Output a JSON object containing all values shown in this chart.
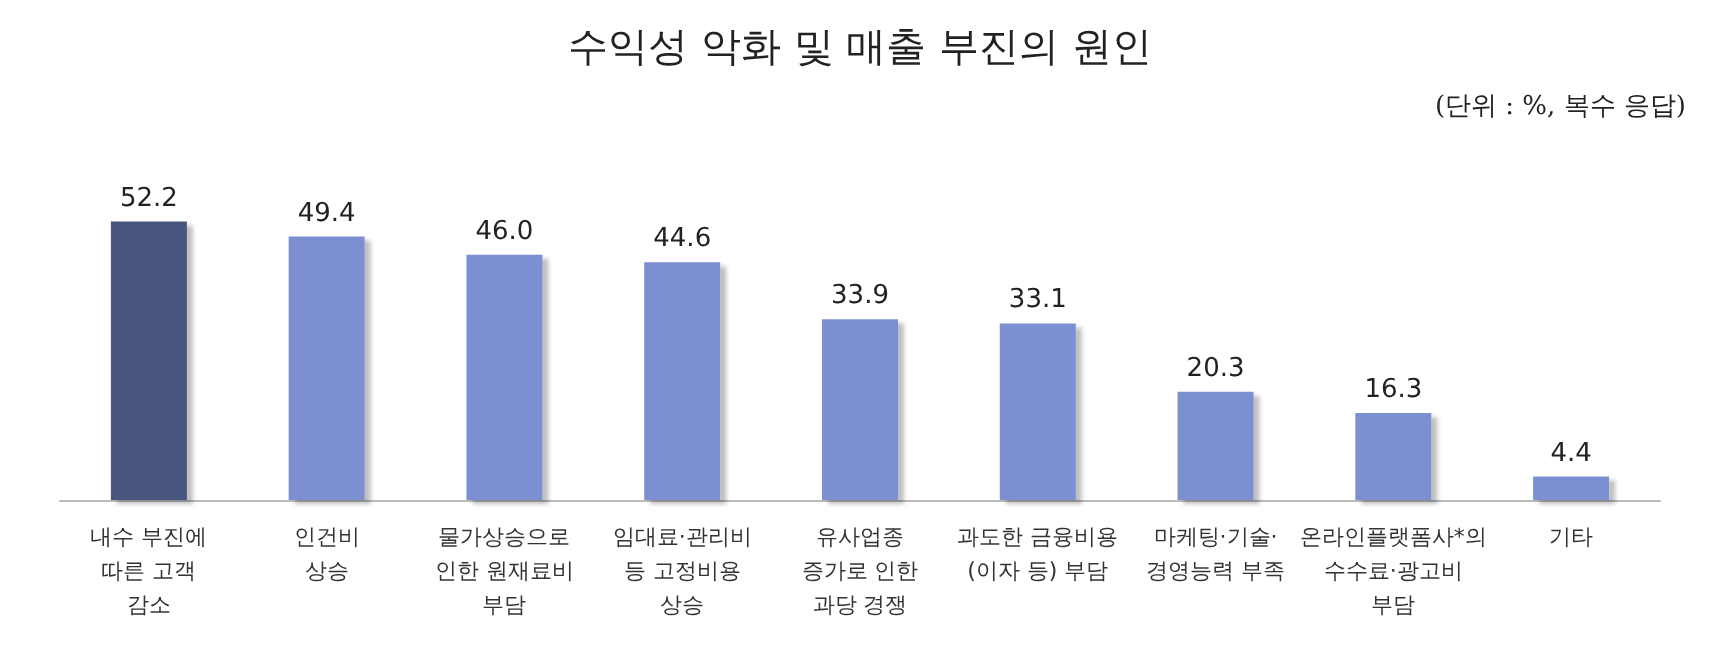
{
  "chart_data": {
    "type": "bar",
    "title": "수익성 악화 및 매출 부진의 원인",
    "subtitle": "(단위 : %, 복수 응답)",
    "categories": [
      "내수 부진에\n따른 고객\n감소",
      "인건비\n상승",
      "물가상승으로\n인한 원재료비\n부담",
      "임대료·관리비\n등 고정비용\n상승",
      "유사업종\n증가로 인한\n과당 경쟁",
      "과도한 금융비용\n(이자 등) 부담",
      "마케팅·기술·\n경영능력 부족",
      "온라인플랫폼사*의\n수수료·광고비\n부담",
      "기타"
    ],
    "values": [
      52.2,
      49.4,
      46.0,
      44.6,
      33.9,
      33.1,
      20.3,
      16.3,
      4.4
    ],
    "colors": [
      "#46557f",
      "#7b8fd0",
      "#7b8fd0",
      "#7b8fd0",
      "#7b8fd0",
      "#7b8fd0",
      "#7b8fd0",
      "#7b8fd0",
      "#7b8fd0"
    ],
    "value_labels": [
      "52.2",
      "49.4",
      "46.0",
      "44.6",
      "33.9",
      "33.1",
      "20.3",
      "16.3",
      "4.4"
    ]
  }
}
